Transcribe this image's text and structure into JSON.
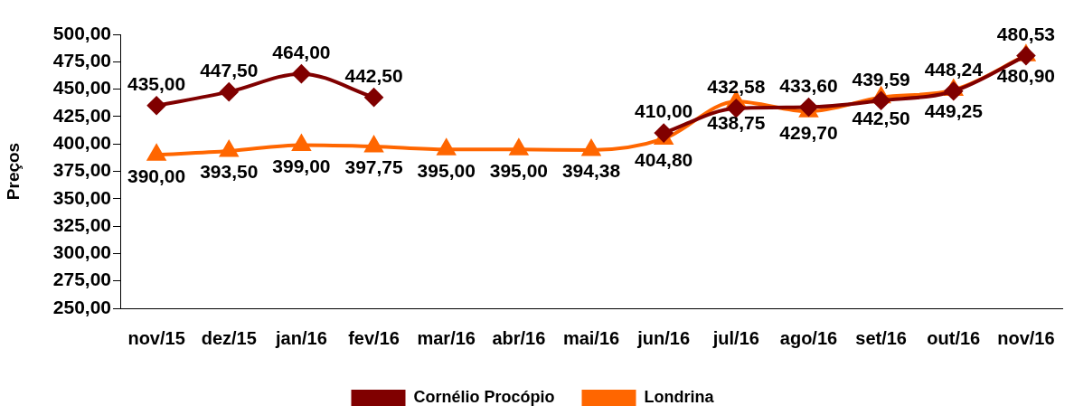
{
  "chart_data": {
    "type": "line",
    "ylabel": "Preços",
    "categories": [
      "nov/15",
      "dez/15",
      "jan/16",
      "fev/16",
      "mar/16",
      "abr/16",
      "mai/16",
      "jun/16",
      "jul/16",
      "ago/16",
      "set/16",
      "out/16",
      "nov/16"
    ],
    "series": [
      {
        "name": "Cornélio Procópio",
        "color": "#800000",
        "marker": "diamond",
        "values": [
          435.0,
          447.5,
          464.0,
          442.5,
          null,
          null,
          null,
          410.0,
          432.58,
          433.6,
          439.59,
          448.24,
          480.53
        ],
        "value_labels": [
          "435,00",
          "447,50",
          "464,00",
          "442,50",
          null,
          null,
          null,
          "410,00",
          "432,58",
          "433,60",
          "439,59",
          "448,24",
          "480,53"
        ]
      },
      {
        "name": "Londrina",
        "color": "#ff6600",
        "marker": "triangle",
        "values": [
          390.0,
          393.5,
          399.0,
          397.75,
          395.0,
          395.0,
          394.38,
          404.8,
          438.75,
          429.7,
          442.5,
          449.25,
          480.9
        ],
        "value_labels": [
          "390,00",
          "393,50",
          "399,00",
          "397,75",
          "395,00",
          "395,00",
          "394,38",
          "404,80",
          "438,75",
          "429,70",
          "442,50",
          "449,25",
          "480,90"
        ]
      }
    ],
    "ylim": [
      250,
      500
    ],
    "yticks": [
      {
        "value": 250,
        "label": "250,00"
      },
      {
        "value": 275,
        "label": "275,00"
      },
      {
        "value": 300,
        "label": "300,00"
      },
      {
        "value": 325,
        "label": "325,00"
      },
      {
        "value": 350,
        "label": "350,00"
      },
      {
        "value": 375,
        "label": "375,00"
      },
      {
        "value": 400,
        "label": "400,00"
      },
      {
        "value": 425,
        "label": "425,00"
      },
      {
        "value": 450,
        "label": "450,00"
      },
      {
        "value": 475,
        "label": "475,00"
      },
      {
        "value": 500,
        "label": "500,00"
      }
    ],
    "grid": false,
    "legend": "bottom",
    "line_style": "solid"
  }
}
